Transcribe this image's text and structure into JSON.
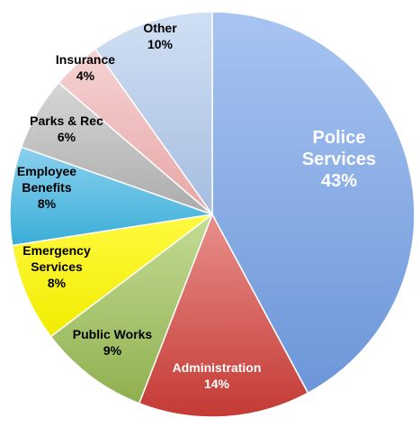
{
  "chart_data": {
    "type": "pie",
    "title": "",
    "legend": "none",
    "slices": [
      {
        "name": "Police Services",
        "label_lines": [
          "Police",
          "Services",
          "43%"
        ],
        "value": 43,
        "color": "#6b96d9",
        "color_light": "#a8c4f1",
        "text_color": "#ffffff"
      },
      {
        "name": "Administration",
        "label_lines": [
          "Administration",
          "14%"
        ],
        "value": 14,
        "color": "#c43a34",
        "color_light": "#e98f8b",
        "text_color": "#ffffff"
      },
      {
        "name": "Public Works",
        "label_lines": [
          "Public Works",
          "9%"
        ],
        "value": 9,
        "color": "#8fb04f",
        "color_light": "#c3dc95",
        "text_color": "#000000"
      },
      {
        "name": "Emergency Services",
        "label_lines": [
          "Emergency",
          "Services",
          "8%"
        ],
        "value": 8,
        "color": "#f2ec00",
        "color_light": "#fffa40",
        "text_color": "#000000"
      },
      {
        "name": "Employee Benefits",
        "label_lines": [
          "Employee",
          "Benefits",
          "8%"
        ],
        "value": 8,
        "color": "#3aaed8",
        "color_light": "#8bd0ee",
        "text_color": "#000000"
      },
      {
        "name": "Parks & Rec",
        "label_lines": [
          "Parks & Rec",
          "6%"
        ],
        "value": 6,
        "color": "#ababab",
        "color_light": "#d6d6d6",
        "text_color": "#000000"
      },
      {
        "name": "Insurance",
        "label_lines": [
          "Insurance",
          "4%"
        ],
        "value": 4,
        "color": "#e7a6a6",
        "color_light": "#f6d3d3",
        "text_color": "#000000"
      },
      {
        "name": "Other",
        "label_lines": [
          "Other",
          "10%"
        ],
        "value": 10,
        "color": "#a6bde0",
        "color_light": "#d0dff3",
        "text_color": "#000000"
      }
    ]
  }
}
